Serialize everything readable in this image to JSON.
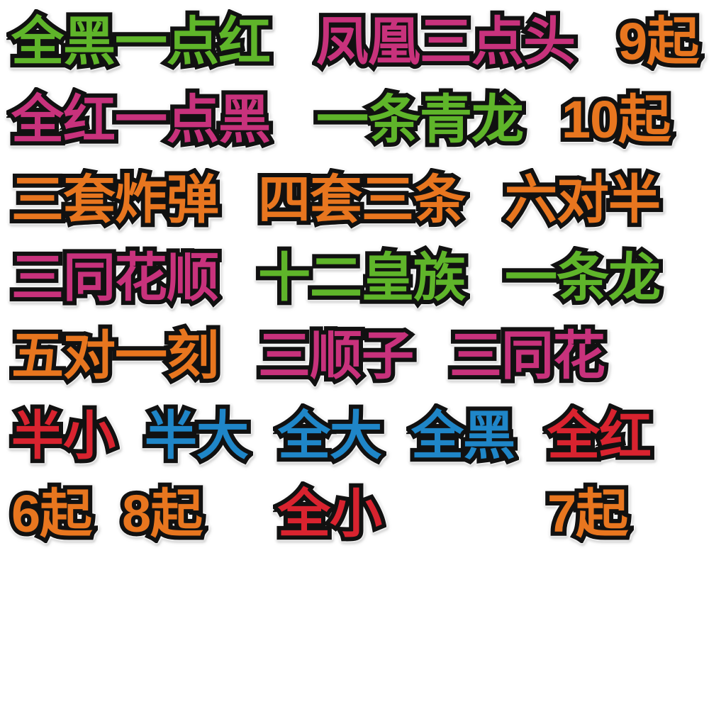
{
  "palette": {
    "green": "#5fb52a",
    "pink": "#c8327c",
    "orange": "#e8761f",
    "blue": "#1f86c8",
    "red": "#d9232f",
    "outline": "#111111"
  },
  "labels": [
    {
      "text": "全黑一点红",
      "color": "green"
    },
    {
      "text": "凤凰三点头",
      "color": "pink"
    },
    {
      "text": "9起",
      "color": "orange"
    },
    {
      "text": "全红一点黑",
      "color": "pink"
    },
    {
      "text": "一条青龙",
      "color": "green"
    },
    {
      "text": "10起",
      "color": "orange"
    },
    {
      "text": "三套炸弹",
      "color": "orange"
    },
    {
      "text": "四套三条",
      "color": "orange"
    },
    {
      "text": "六对半",
      "color": "orange"
    },
    {
      "text": "三同花顺",
      "color": "pink"
    },
    {
      "text": "十二皇族",
      "color": "green"
    },
    {
      "text": "一条龙",
      "color": "green"
    },
    {
      "text": "五对一刻",
      "color": "orange"
    },
    {
      "text": "三顺子",
      "color": "pink"
    },
    {
      "text": "三同花",
      "color": "pink"
    },
    {
      "text": "半小",
      "color": "red"
    },
    {
      "text": "半大",
      "color": "blue"
    },
    {
      "text": "全大",
      "color": "blue"
    },
    {
      "text": "全黑",
      "color": "blue"
    },
    {
      "text": "全红",
      "color": "red"
    },
    {
      "text": "6起",
      "color": "orange"
    },
    {
      "text": "8起",
      "color": "orange"
    },
    {
      "text": "全小",
      "color": "red"
    },
    {
      "text": "7起",
      "color": "orange"
    }
  ]
}
